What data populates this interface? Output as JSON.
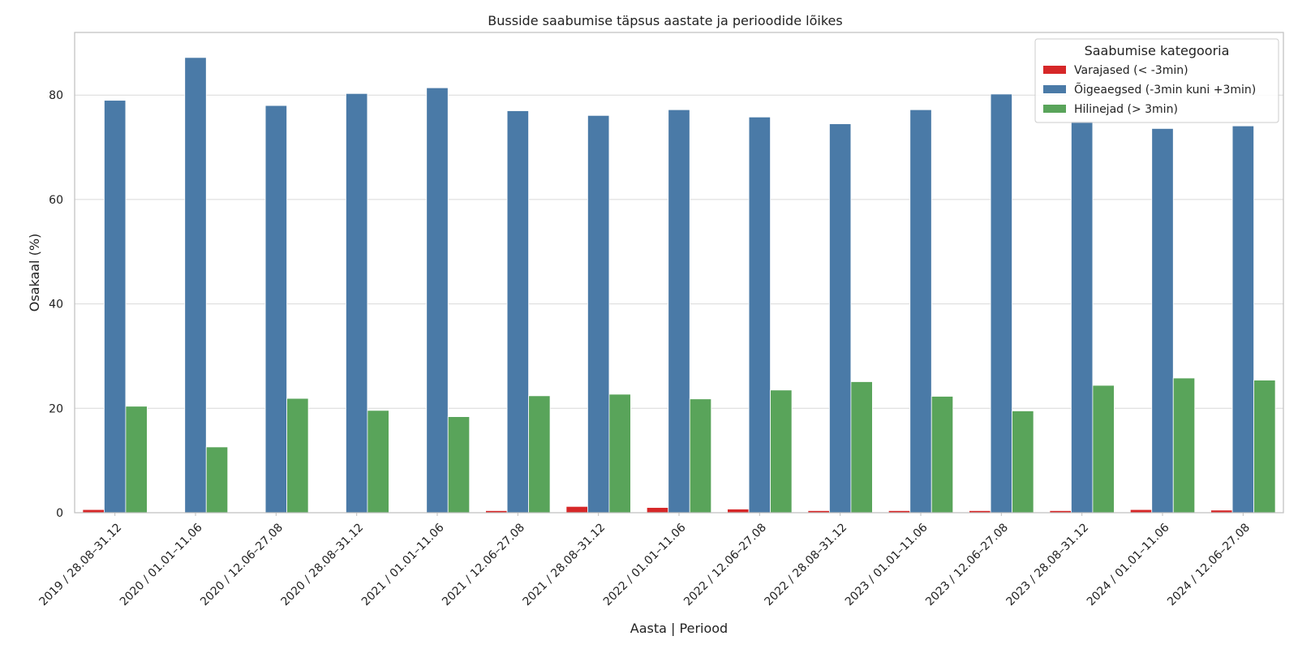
{
  "chart_data": {
    "type": "bar",
    "title": "Busside saabumise täpsus aastate ja perioodide lõikes",
    "xlabel": "Aasta | Periood",
    "ylabel": "Osakaal (%)",
    "ylim": [
      0,
      92
    ],
    "yticks": [
      0,
      20,
      40,
      60,
      80
    ],
    "grid": true,
    "legend_title": "Saabumise kategooria",
    "legend_position": "top-right",
    "categories": [
      "2019 / 28.08–31.12",
      "2020 / 01.01–11.06",
      "2020 / 12.06–27.08",
      "2020 / 28.08–31.12",
      "2021 / 01.01–11.06",
      "2021 / 12.06–27.08",
      "2021 / 28.08–31.12",
      "2022 / 01.01–11.06",
      "2022 / 12.06–27.08",
      "2022 / 28.08–31.12",
      "2023 / 01.01–11.06",
      "2023 / 12.06–27.08",
      "2023 / 28.08–31.12",
      "2024 / 01.01–11.06",
      "2024 / 12.06–27.08"
    ],
    "series": [
      {
        "name": "Varajased (< -3min)",
        "color": "#d62728",
        "values": [
          0.6,
          0.1,
          0.1,
          0.1,
          0.1,
          0.4,
          1.2,
          1.0,
          0.7,
          0.4,
          0.4,
          0.4,
          0.4,
          0.6,
          0.5
        ]
      },
      {
        "name": "Õigeaegsed (-3min kuni +3min)",
        "color": "#4a7aa7",
        "values": [
          79.0,
          87.2,
          78.0,
          80.3,
          81.4,
          77.0,
          76.1,
          77.2,
          75.8,
          74.5,
          77.2,
          80.2,
          75.0,
          73.6,
          74.1
        ]
      },
      {
        "name": "Hilinejad (> 3min)",
        "color": "#59a45a",
        "values": [
          20.4,
          12.6,
          21.9,
          19.6,
          18.4,
          22.4,
          22.7,
          21.8,
          23.5,
          25.1,
          22.3,
          19.5,
          24.4,
          25.8,
          25.4
        ]
      }
    ]
  }
}
